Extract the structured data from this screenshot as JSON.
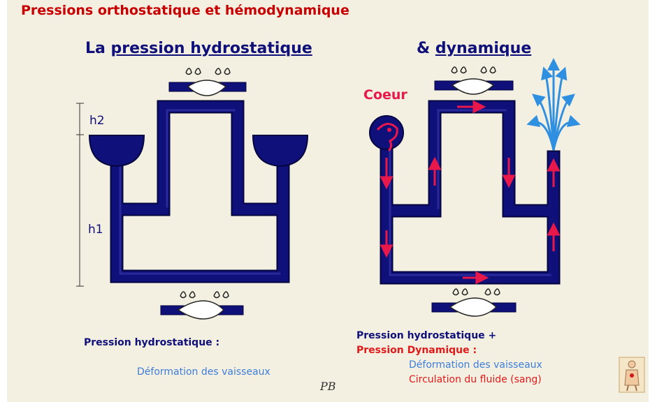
{
  "title": "Pressions orthostatique et hémodynamique",
  "left_heading": {
    "prefix": "La ",
    "underlined": "pression hydrostatique"
  },
  "right_heading": {
    "prefix": "& ",
    "underlined": "dynamique"
  },
  "labels": {
    "h2": "h2",
    "h1": "h1",
    "coeur": "Coeur"
  },
  "captions": {
    "left_line1": "Pression hydrostatique :",
    "left_line2": "Déformation des vaisseaux",
    "right_line1": "Pression hydrostatique +",
    "right_line2": "Pression Dynamique :",
    "right_line3": "Déformation des vaisseaux",
    "right_line4": "Circulation du fluide (sang)"
  },
  "signature": "PB",
  "colors": {
    "tube": "#10107a",
    "arrow": "#e8184a",
    "fountain": "#2f8fe0",
    "background": "#f3efe1"
  },
  "icons": [
    "vessel-deformation-icon",
    "heart-pump-icon",
    "fountain-icon",
    "anatomy-figure-icon"
  ]
}
